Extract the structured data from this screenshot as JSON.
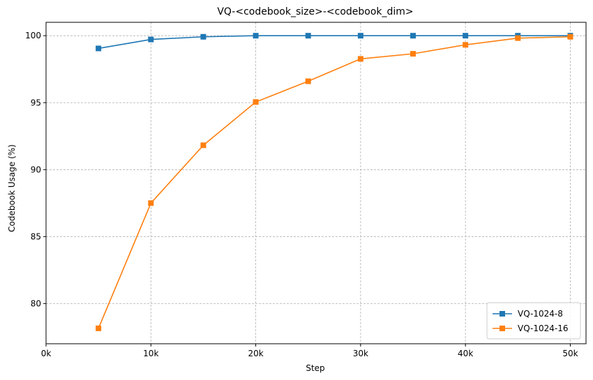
{
  "chart_data": {
    "type": "line",
    "title": "VQ-<codebook_size>-<codebook_dim>",
    "xlabel": "Step",
    "ylabel": "Codebook Usage (%)",
    "xlim": [
      0,
      51500
    ],
    "ylim": [
      77.0,
      101.0
    ],
    "x_ticks": [
      0,
      10000,
      20000,
      30000,
      40000,
      50000
    ],
    "x_tick_labels": [
      "0k",
      "10k",
      "20k",
      "30k",
      "40k",
      "50k"
    ],
    "y_ticks": [
      80,
      85,
      90,
      95,
      100
    ],
    "y_tick_labels": [
      "80",
      "85",
      "90",
      "95",
      "100"
    ],
    "grid": true,
    "legend_position": "bottom-right",
    "x": [
      5000,
      10000,
      15000,
      20000,
      25000,
      30000,
      35000,
      40000,
      45000,
      50000
    ],
    "series": [
      {
        "name": "VQ-1024-8",
        "color": "#1f77b4",
        "marker": "square",
        "values": [
          99.05,
          99.72,
          99.92,
          100.0,
          100.0,
          100.0,
          100.0,
          100.0,
          100.0,
          100.0
        ]
      },
      {
        "name": "VQ-1024-16",
        "color": "#ff7f0e",
        "marker": "square",
        "values": [
          78.15,
          87.5,
          91.82,
          95.05,
          96.6,
          98.27,
          98.65,
          99.32,
          99.82,
          99.92
        ]
      }
    ]
  }
}
